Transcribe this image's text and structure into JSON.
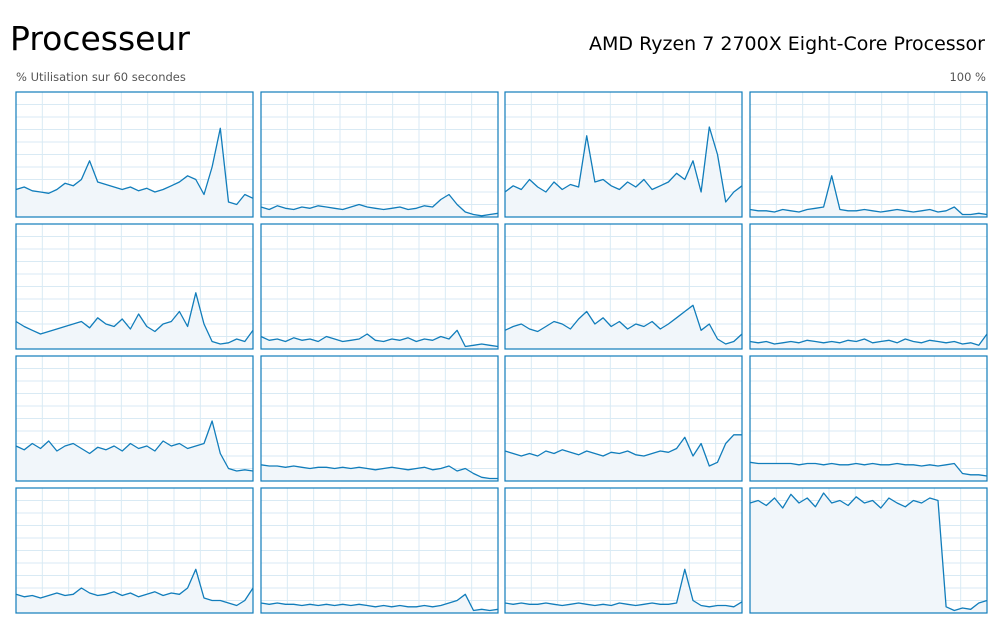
{
  "header": {
    "title": "Processeur",
    "processor": "AMD Ryzen 7 2700X Eight-Core Processor"
  },
  "labels": {
    "utilization": "% Utilisation sur 60 secondes",
    "max": "100 %"
  },
  "scale": {
    "ylim": [
      0,
      100
    ]
  },
  "graphs": [
    {
      "values": [
        22,
        24,
        21,
        20,
        19,
        22,
        27,
        25,
        30,
        45,
        28,
        26,
        24,
        22,
        24,
        21,
        23,
        20,
        22,
        25,
        28,
        33,
        30,
        18,
        40,
        71,
        12,
        10,
        18,
        15
      ]
    },
    {
      "values": [
        8,
        6,
        9,
        7,
        6,
        8,
        7,
        9,
        8,
        7,
        6,
        8,
        10,
        8,
        7,
        6,
        7,
        8,
        6,
        7,
        9,
        8,
        14,
        18,
        10,
        4,
        2,
        1,
        2,
        3
      ]
    },
    {
      "values": [
        20,
        25,
        22,
        30,
        24,
        20,
        28,
        22,
        26,
        24,
        65,
        28,
        30,
        25,
        22,
        28,
        24,
        30,
        22,
        25,
        28,
        35,
        30,
        45,
        20,
        72,
        50,
        12,
        20,
        25
      ]
    },
    {
      "values": [
        6,
        5,
        5,
        4,
        6,
        5,
        4,
        6,
        7,
        8,
        33,
        6,
        5,
        5,
        6,
        5,
        4,
        5,
        6,
        5,
        4,
        5,
        6,
        4,
        5,
        8,
        2,
        2,
        3,
        2
      ]
    },
    {
      "values": [
        22,
        18,
        15,
        12,
        14,
        16,
        18,
        20,
        22,
        17,
        25,
        20,
        18,
        24,
        16,
        28,
        18,
        14,
        20,
        22,
        30,
        18,
        45,
        20,
        6,
        4,
        5,
        8,
        6,
        15
      ]
    },
    {
      "values": [
        10,
        7,
        8,
        6,
        9,
        7,
        8,
        6,
        10,
        8,
        6,
        7,
        8,
        12,
        7,
        6,
        8,
        7,
        9,
        6,
        8,
        7,
        10,
        8,
        15,
        2,
        3,
        4,
        3,
        2
      ]
    },
    {
      "values": [
        15,
        18,
        20,
        16,
        14,
        18,
        22,
        20,
        16,
        24,
        30,
        20,
        25,
        18,
        22,
        16,
        20,
        18,
        22,
        16,
        20,
        25,
        30,
        35,
        15,
        20,
        8,
        4,
        6,
        12
      ]
    },
    {
      "values": [
        6,
        5,
        6,
        4,
        5,
        6,
        5,
        7,
        6,
        5,
        6,
        5,
        7,
        6,
        8,
        5,
        6,
        7,
        5,
        8,
        6,
        5,
        7,
        6,
        5,
        6,
        4,
        5,
        3,
        12
      ]
    },
    {
      "values": [
        28,
        25,
        30,
        26,
        32,
        24,
        28,
        30,
        26,
        22,
        27,
        25,
        28,
        24,
        30,
        26,
        28,
        24,
        32,
        28,
        30,
        26,
        28,
        30,
        48,
        22,
        10,
        8,
        9,
        8
      ]
    },
    {
      "values": [
        13,
        12,
        12,
        11,
        12,
        11,
        10,
        11,
        11,
        10,
        11,
        10,
        11,
        10,
        9,
        10,
        11,
        10,
        9,
        10,
        11,
        9,
        10,
        12,
        8,
        10,
        6,
        3,
        2,
        2
      ]
    },
    {
      "values": [
        24,
        22,
        20,
        22,
        20,
        24,
        22,
        25,
        23,
        21,
        24,
        22,
        20,
        23,
        22,
        24,
        21,
        20,
        22,
        24,
        23,
        26,
        35,
        20,
        30,
        12,
        15,
        30,
        37,
        37
      ]
    },
    {
      "values": [
        15,
        14,
        14,
        14,
        14,
        14,
        13,
        14,
        14,
        13,
        14,
        13,
        13,
        14,
        13,
        14,
        13,
        13,
        14,
        13,
        13,
        12,
        13,
        12,
        13,
        14,
        6,
        5,
        5,
        4
      ]
    },
    {
      "values": [
        15,
        13,
        14,
        12,
        14,
        16,
        14,
        15,
        20,
        16,
        14,
        15,
        17,
        14,
        16,
        13,
        15,
        17,
        14,
        16,
        15,
        20,
        35,
        12,
        10,
        10,
        8,
        6,
        10,
        20
      ]
    },
    {
      "values": [
        8,
        7,
        8,
        7,
        7,
        6,
        7,
        6,
        7,
        6,
        7,
        6,
        7,
        6,
        5,
        6,
        5,
        6,
        5,
        5,
        6,
        5,
        6,
        8,
        10,
        15,
        2,
        3,
        2,
        3
      ]
    },
    {
      "values": [
        8,
        7,
        8,
        7,
        7,
        8,
        7,
        6,
        7,
        8,
        7,
        6,
        7,
        6,
        8,
        7,
        6,
        7,
        8,
        7,
        7,
        8,
        35,
        10,
        6,
        5,
        6,
        6,
        5,
        9
      ]
    },
    {
      "values": [
        88,
        90,
        86,
        92,
        84,
        95,
        88,
        92,
        85,
        96,
        88,
        90,
        86,
        93,
        88,
        90,
        84,
        92,
        88,
        85,
        90,
        88,
        92,
        90,
        5,
        2,
        4,
        3,
        8,
        10
      ]
    }
  ]
}
